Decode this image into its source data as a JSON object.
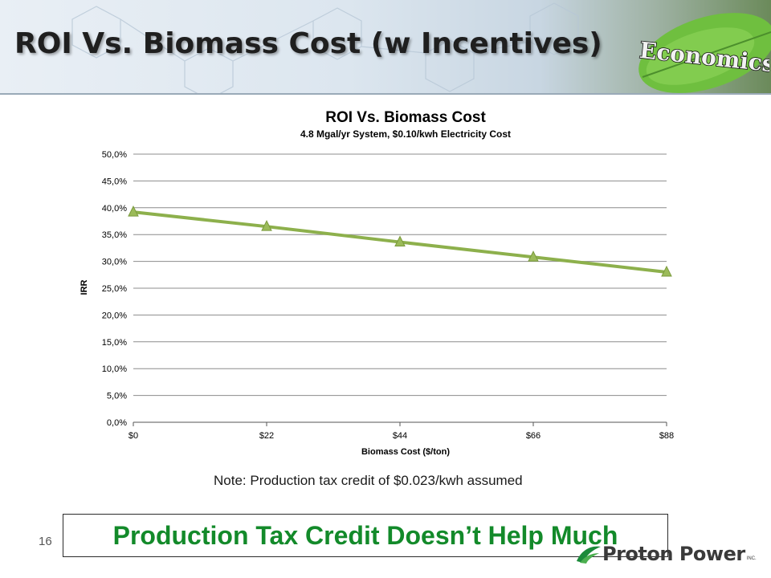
{
  "slide": {
    "title": "ROI Vs. Biomass Cost (w Incentives)",
    "badge": "Economics",
    "note": "Note: Production tax credit of $0.023/kwh assumed",
    "page_number": "16",
    "callout": "Production Tax Credit Doesn’t Help Much",
    "logo_text": "Proton Power",
    "logo_suffix": "INC."
  },
  "colors": {
    "series_line": "#8db04c",
    "marker_fill": "#9bbb59",
    "callout_text": "#138a2a",
    "gridline": "#8c8c8c"
  },
  "chart_data": {
    "type": "line",
    "title": "ROI Vs. Biomass Cost",
    "subtitle": "4.8 Mgal/yr System, $0.10/kwh Electricity Cost",
    "xlabel": "Biomass Cost ($/ton)",
    "ylabel": "IRR",
    "categories": [
      "$0",
      "$22",
      "$44",
      "$66",
      "$88"
    ],
    "x": [
      0,
      22,
      44,
      66,
      88
    ],
    "series": [
      {
        "values": [
          39.2,
          36.5,
          33.6,
          30.8,
          28.0
        ]
      }
    ],
    "ylim": [
      0,
      50
    ],
    "yticks": [
      "0,0%",
      "5,0%",
      "10,0%",
      "15,0%",
      "20,0%",
      "25,0%",
      "30,0%",
      "35,0%",
      "40,0%",
      "45,0%",
      "50,0%"
    ],
    "grid": true,
    "marker": "triangle"
  }
}
